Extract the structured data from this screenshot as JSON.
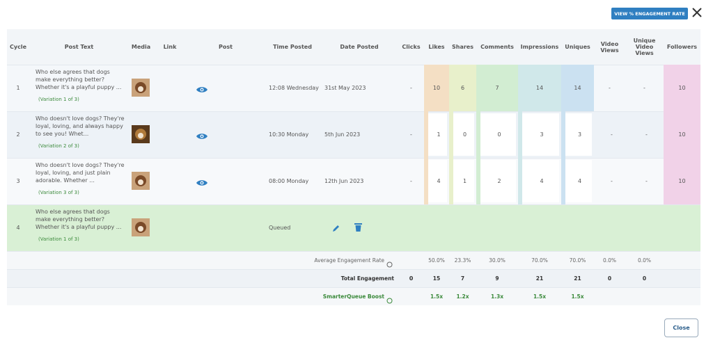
{
  "header": {
    "button": "VIEW % ENGAGEMENT RATE",
    "close": "Close"
  },
  "table": {
    "columns": [
      "Cycle",
      "Post Text",
      "Media",
      "Link",
      "Post",
      "Time Posted",
      "Date Posted",
      "Clicks",
      "Likes",
      "Shares",
      "Comments",
      "Impressions",
      "Uniques",
      "Video Views",
      "Unique Video Views",
      "Followers"
    ],
    "rows": [
      {
        "cycle": "1",
        "post_text": "Who else agrees that dogs make everything better? Whether it's a playful puppy ...",
        "variation": "(Variation 1 of 3)",
        "time": "12:08 Wednesday",
        "date": "31st May 2023",
        "clicks": "-",
        "metrics": [
          "10",
          "6",
          "7",
          "14",
          "14",
          "-",
          "-",
          "10"
        ]
      },
      {
        "cycle": "2",
        "post_text": "Who doesn't love dogs? They're loyal, loving, and always happy to see you! Whet...",
        "variation": "(Variation 2 of 3)",
        "time": "10:30 Monday",
        "date": "5th Jun 2023",
        "clicks": "-",
        "metrics": [
          "1",
          "0",
          "0",
          "3",
          "3",
          "-",
          "-",
          "10"
        ]
      },
      {
        "cycle": "3",
        "post_text": "Who doesn't love dogs? They're loyal, loving, and just plain adorable. Whether ...",
        "variation": "(Variation 3 of 3)",
        "time": "08:00 Monday",
        "date": "12th Jun 2023",
        "clicks": "-",
        "metrics": [
          "4",
          "1",
          "2",
          "4",
          "4",
          "-",
          "-",
          "10"
        ]
      },
      {
        "cycle": "4",
        "post_text": "Who else agrees that dogs make everything better? Whether it's a playful puppy ...",
        "variation": "(Variation 1 of 3)",
        "time": "Queued"
      }
    ],
    "average": {
      "label": "Average Engagement Rate",
      "metrics": [
        "50.0%",
        "23.3%",
        "30.0%",
        "70.0%",
        "70.0%",
        "0.0%",
        "0.0%"
      ]
    },
    "total": {
      "label": "Total Engagement",
      "clicks": "0",
      "metrics": [
        "15",
        "7",
        "9",
        "21",
        "21",
        "0",
        "0"
      ]
    },
    "boost": {
      "label": "SmarterQueue Boost",
      "metrics": [
        "1.5x",
        "1.2x",
        "1.3x",
        "1.5x",
        "1.5x"
      ]
    }
  }
}
